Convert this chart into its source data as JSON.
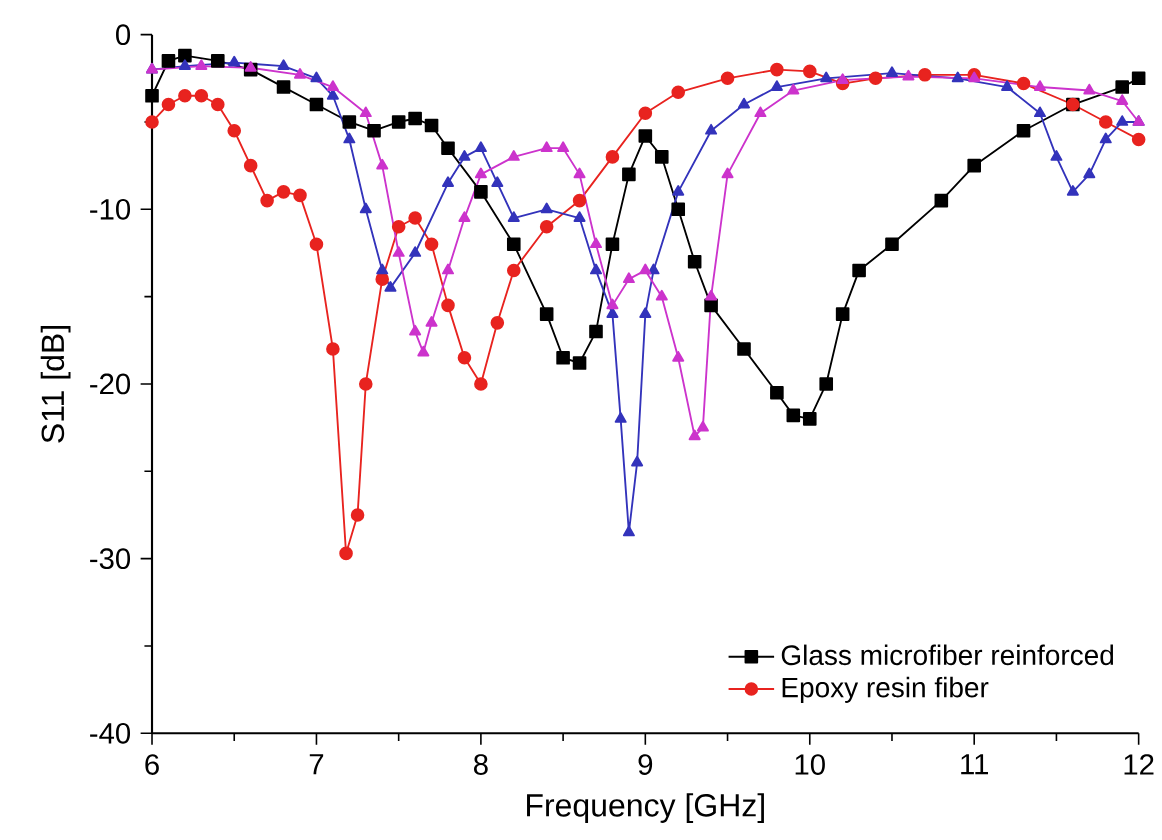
{
  "chart_data": {
    "type": "line",
    "xlabel": "Frequency [GHz]",
    "ylabel": "S11 [dB]",
    "xlim": [
      6,
      12
    ],
    "ylim": [
      -40,
      0
    ],
    "xticks": [
      6,
      7,
      8,
      9,
      10,
      11,
      12
    ],
    "yticks": [
      -40,
      -30,
      -20,
      -10,
      0
    ],
    "legend": "bottom right",
    "grid": false,
    "line_style": "solid",
    "series": [
      {
        "name": "Glass microfiber reinforced",
        "color": "#000000",
        "marker": "square",
        "x": [
          6,
          6.1,
          6.2,
          6.4,
          6.6,
          6.8,
          7.0,
          7.2,
          7.35,
          7.5,
          7.6,
          7.7,
          7.8,
          8.0,
          8.2,
          8.4,
          8.5,
          8.6,
          8.7,
          8.8,
          8.9,
          9.0,
          9.1,
          9.2,
          9.3,
          9.4,
          9.6,
          9.8,
          9.9,
          10.0,
          10.1,
          10.2,
          10.3,
          10.5,
          10.8,
          11.0,
          11.3,
          11.6,
          11.9,
          12
        ],
        "values": [
          -3.5,
          -1.5,
          -1.2,
          -1.5,
          -2,
          -3,
          -4,
          -5,
          -5.5,
          -5,
          -4.8,
          -5.2,
          -6.5,
          -9,
          -12,
          -16,
          -18.5,
          -18.8,
          -17,
          -12,
          -8,
          -5.8,
          -7,
          -10,
          -13,
          -15.5,
          -18,
          -20.5,
          -21.8,
          -22,
          -20,
          -16,
          -13.5,
          -12,
          -9.5,
          -7.5,
          -5.5,
          -4,
          -3,
          -2.5
        ]
      },
      {
        "name": "Epoxy resin fiber",
        "color": "#e8231f",
        "marker": "circle",
        "x": [
          6,
          6.1,
          6.2,
          6.3,
          6.4,
          6.5,
          6.6,
          6.7,
          6.8,
          6.9,
          7.0,
          7.1,
          7.18,
          7.25,
          7.3,
          7.4,
          7.5,
          7.6,
          7.7,
          7.8,
          7.9,
          8.0,
          8.1,
          8.2,
          8.4,
          8.6,
          8.8,
          9.0,
          9.2,
          9.5,
          9.8,
          10.0,
          10.2,
          10.4,
          10.7,
          11.0,
          11.3,
          11.6,
          11.8,
          12
        ],
        "values": [
          -5,
          -4,
          -3.5,
          -3.5,
          -4,
          -5.5,
          -7.5,
          -9.5,
          -9,
          -9.2,
          -12,
          -18,
          -29.7,
          -27.5,
          -20,
          -14,
          -11,
          -10.5,
          -12,
          -15.5,
          -18.5,
          -20,
          -16.5,
          -13.5,
          -11,
          -9.5,
          -7,
          -4.5,
          -3.3,
          -2.5,
          -2,
          -2.1,
          -2.8,
          -2.5,
          -2.3,
          -2.3,
          -2.8,
          -4,
          -5,
          -6
        ]
      },
      {
        "color": "#3333bb",
        "marker": "triangle",
        "x": [
          6,
          6.2,
          6.5,
          6.8,
          7.0,
          7.1,
          7.2,
          7.3,
          7.4,
          7.45,
          7.6,
          7.8,
          7.9,
          8.0,
          8.1,
          8.2,
          8.4,
          8.6,
          8.7,
          8.8,
          8.85,
          8.9,
          8.95,
          9.0,
          9.05,
          9.2,
          9.4,
          9.6,
          9.8,
          10.1,
          10.5,
          10.9,
          11.2,
          11.4,
          11.5,
          11.6,
          11.7,
          11.8,
          11.9,
          12
        ],
        "values": [
          -2,
          -1.8,
          -1.6,
          -1.8,
          -2.5,
          -3.5,
          -6,
          -10,
          -13.5,
          -14.5,
          -12.5,
          -8.5,
          -7,
          -6.5,
          -8.5,
          -10.5,
          -10,
          -10.5,
          -13.5,
          -16,
          -22,
          -28.5,
          -24.5,
          -16,
          -13.5,
          -9,
          -5.5,
          -4,
          -3,
          -2.5,
          -2.2,
          -2.5,
          -3,
          -4.5,
          -7,
          -9,
          -8,
          -6,
          -5,
          -5
        ]
      },
      {
        "color": "#cc33cc",
        "marker": "triangle",
        "x": [
          6,
          6.3,
          6.6,
          6.9,
          7.1,
          7.3,
          7.4,
          7.5,
          7.6,
          7.65,
          7.7,
          7.8,
          7.9,
          8.0,
          8.2,
          8.4,
          8.5,
          8.6,
          8.7,
          8.8,
          8.9,
          9.0,
          9.1,
          9.2,
          9.3,
          9.35,
          9.4,
          9.5,
          9.7,
          9.9,
          10.2,
          10.6,
          11,
          11.4,
          11.7,
          11.9,
          12
        ],
        "values": [
          -2,
          -1.8,
          -1.9,
          -2.3,
          -3,
          -4.5,
          -7.5,
          -12.5,
          -17,
          -18.2,
          -16.5,
          -13.5,
          -10.5,
          -8,
          -7,
          -6.5,
          -6.5,
          -8,
          -12,
          -15.5,
          -14,
          -13.5,
          -15,
          -18.5,
          -23,
          -22.5,
          -15,
          -8,
          -4.5,
          -3.2,
          -2.6,
          -2.4,
          -2.5,
          -3,
          -3.2,
          -3.8,
          -5
        ]
      }
    ]
  }
}
